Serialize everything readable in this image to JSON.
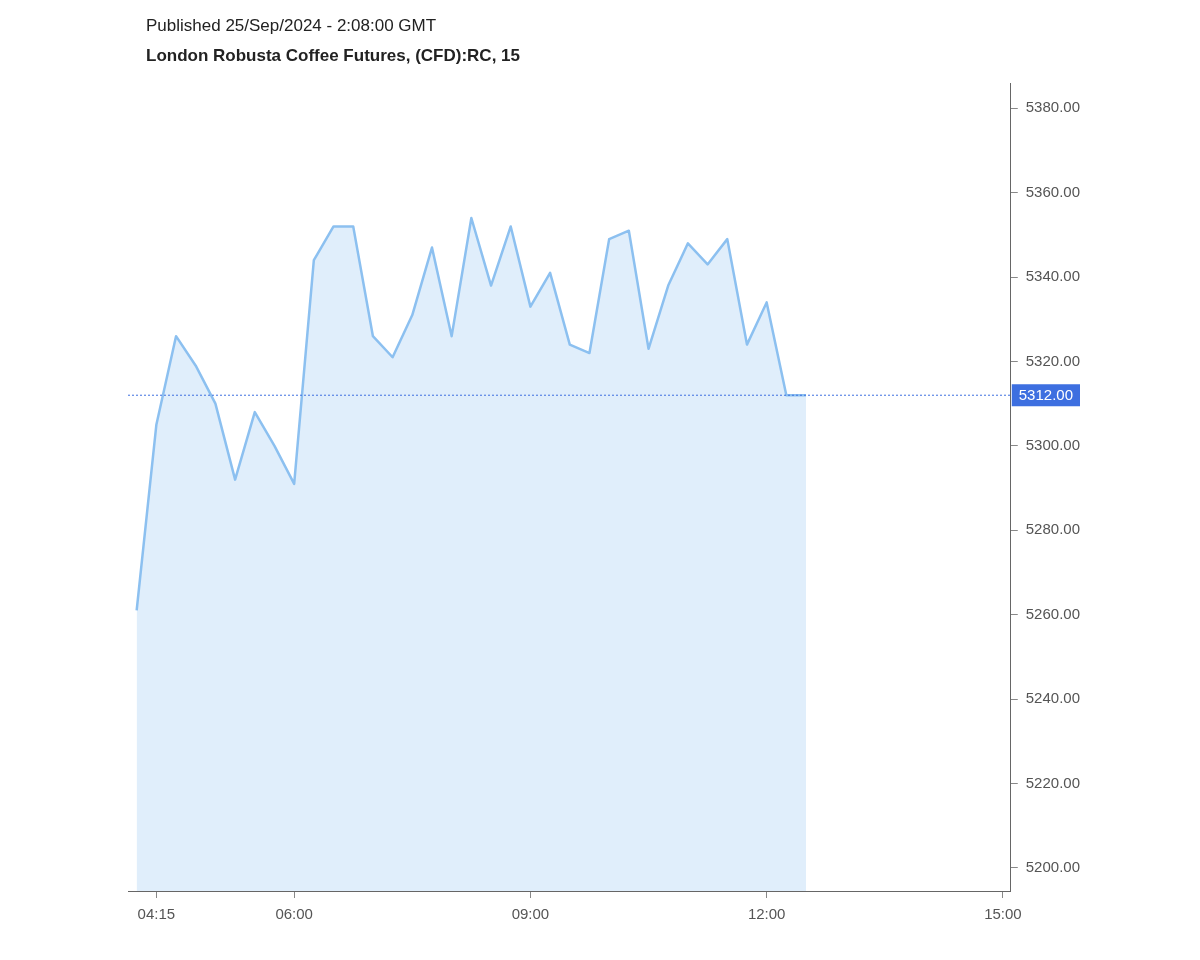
{
  "chart_data": {
    "type": "area",
    "title": "London Robusta Coffee Futures, (CFD):RC, 15",
    "annotations": [
      "Published 25/Sep/2024 - 2:08:00 GMT"
    ],
    "x": [
      4,
      4.25,
      4.5,
      4.75,
      5,
      5.25,
      5.5,
      5.75,
      6,
      6.25,
      6.5,
      6.75,
      7,
      7.25,
      7.5,
      7.75,
      8,
      8.25,
      8.5,
      8.75,
      9,
      9.25,
      9.5,
      9.75,
      10,
      10.25,
      10.5,
      10.75,
      11,
      11.25,
      11.5,
      11.75,
      12,
      12.25,
      12.5
    ],
    "series": [
      {
        "color": "#8cc0f0",
        "values": [
          5261,
          5305,
          5326,
          5319,
          5310,
          5292,
          5308,
          5300,
          5291,
          5344,
          5352,
          5352,
          5326,
          5321,
          5331,
          5347,
          5326,
          5354,
          5338,
          5352,
          5333,
          5341,
          5324,
          5322,
          5349,
          5351,
          5323,
          5338,
          5348,
          5343,
          5349,
          5324,
          5334,
          5312,
          5312
        ]
      }
    ],
    "xlim": [
      3.89,
      15.1
    ],
    "xticks": [
      {
        "value": 4.25,
        "label": "04:15"
      },
      {
        "value": 6,
        "label": "06:00"
      },
      {
        "value": 9,
        "label": "09:00"
      },
      {
        "value": 12,
        "label": "12:00"
      },
      {
        "value": 15,
        "label": "15:00"
      }
    ],
    "ylim": [
      5194.5,
      5386
    ],
    "yticks": [
      {
        "value": 5200,
        "label": "5200.00"
      },
      {
        "value": 5220,
        "label": "5220.00"
      },
      {
        "value": 5240,
        "label": "5240.00"
      },
      {
        "value": 5260,
        "label": "5260.00"
      },
      {
        "value": 5280,
        "label": "5280.00"
      },
      {
        "value": 5300,
        "label": "5300.00"
      },
      {
        "value": 5320,
        "label": "5320.00"
      },
      {
        "value": 5340,
        "label": "5340.00"
      },
      {
        "value": 5360,
        "label": "5360.00"
      },
      {
        "value": 5380,
        "label": "5380.00"
      }
    ],
    "ref_lines": [
      {
        "axis": "y",
        "value": 5312,
        "label": "5312.00",
        "color": "#3d6fe0",
        "line_style": "dotted"
      }
    ],
    "grid": false,
    "legend": false,
    "marker": "none",
    "line_style": "solid"
  }
}
